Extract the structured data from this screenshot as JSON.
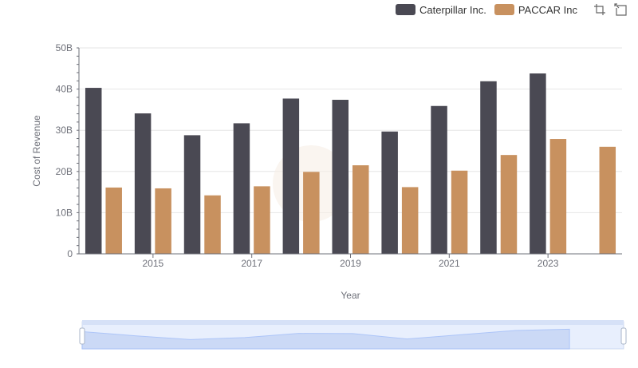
{
  "legend": [
    {
      "name": "Caterpillar Inc.",
      "color": "#4a4953"
    },
    {
      "name": "PACCAR Inc",
      "color": "#c8915f"
    }
  ],
  "toolbox": {
    "icons": [
      "zoom-icon",
      "zoom-reset-icon"
    ]
  },
  "chart_data": {
    "type": "bar",
    "categories": [
      "2014",
      "2015",
      "2016",
      "2017",
      "2018",
      "2019",
      "2020",
      "2021",
      "2022",
      "2023",
      "2024"
    ],
    "xlabel": "Year",
    "ylabel": "Cost of Revenue",
    "y_ticks": [
      "0",
      "10B",
      "20B",
      "30B",
      "40B",
      "50B"
    ],
    "x_ticks": [
      "2015",
      "2017",
      "2019",
      "2021",
      "2023"
    ],
    "ylim": [
      0,
      50
    ],
    "unit": "B",
    "grid": true,
    "legend_position": "top-right",
    "series": [
      {
        "name": "Caterpillar Inc.",
        "color": "#4a4953",
        "values": [
          40.3,
          34.1,
          28.8,
          31.7,
          37.7,
          37.4,
          29.7,
          35.9,
          41.9,
          43.8,
          null
        ]
      },
      {
        "name": "PACCAR Inc",
        "color": "#c8915f",
        "values": [
          16.1,
          15.9,
          14.2,
          16.4,
          19.9,
          21.5,
          16.2,
          20.2,
          24.0,
          27.9,
          26.0
        ]
      }
    ],
    "data_zoom": {
      "start_percent": 0,
      "end_percent": 100
    }
  }
}
